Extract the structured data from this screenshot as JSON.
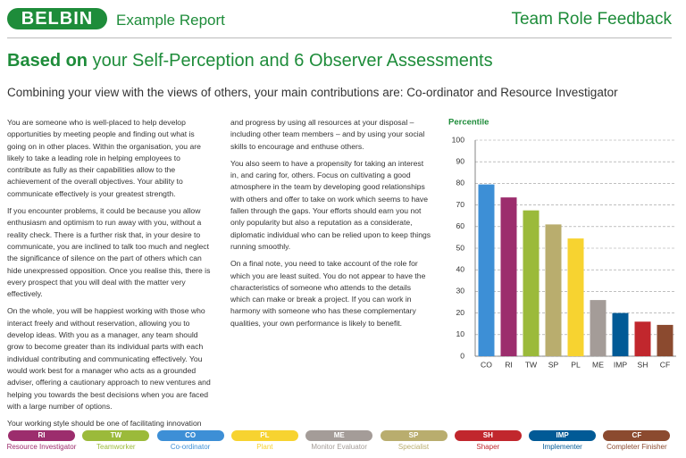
{
  "header": {
    "logo": "BELBIN",
    "report": "Example Report",
    "section": "Team Role Feedback"
  },
  "heading": {
    "bold": "Based on",
    "rest": " your Self-Perception and 6 Observer Assessments"
  },
  "subtitle": "Combining your view with the views of others, your main contributions are: Co-ordinator and Resource Investigator",
  "columns": [
    [
      "You are someone who is well-placed to help develop opportunities by meeting people and finding out what is going on in other places. Within the organisation, you are likely to take a leading role in helping employees to contribute as fully as their capabilities allow to the achievement of the overall objectives. Your ability to communicate effectively is your greatest strength.",
      "If you encounter problems, it could be because you allow enthusiasm and optimism to run away with you, without a reality check. There is a further risk that, in your desire to communicate, you are inclined to talk too much and neglect the significance of silence on the part of others which can hide unexpressed opposition. Once you realise this, there is every prospect that you will deal with the matter very effectively.",
      "On the whole, you will be happiest working with those who interact freely and without reservation, allowing you to develop ideas. With you as a manager, any team should grow to become greater than its individual parts with each individual contributing and communicating effectively. You would work best for a manager who acts as a grounded adviser, offering a cautionary approach to new ventures and helping you towards the best decisions when you are faced with a large number of options.",
      "Your working style should be one of facilitating innovation"
    ],
    [
      "and progress by using all resources at your disposal – including other team members – and by using your social skills to encourage and enthuse others.",
      "You also seem to have a propensity for taking an interest in, and caring for, others. Focus on cultivating a good atmosphere in the team by developing good relationships with others and offer to take on work which seems to have fallen through the gaps. Your efforts should earn you not only popularity but also a reputation as a considerate, diplomatic individual who can be relied upon to keep things running smoothly.",
      "On a final note, you need to take account of the role for which you are least suited. You do not appear to have the characteristics of someone who attends to the details which can make or break a project. If you can work in harmony with someone who has these complementary qualities, your own performance is likely to benefit."
    ]
  ],
  "chart_data": {
    "type": "bar",
    "title": "Percentile",
    "categories": [
      "CO",
      "RI",
      "TW",
      "SP",
      "PL",
      "ME",
      "IMP",
      "SH",
      "CF"
    ],
    "values": [
      79.5,
      73.5,
      67.5,
      61,
      54.5,
      26,
      20,
      16,
      14.5
    ],
    "colors": [
      "#3d8fd6",
      "#9c2d6d",
      "#9bba3a",
      "#b9ad6e",
      "#f7d330",
      "#a49c98",
      "#015a96",
      "#c1272d",
      "#8b4a2f"
    ],
    "ylim": [
      0,
      100
    ],
    "yticks": [
      0,
      10,
      20,
      30,
      40,
      50,
      60,
      70,
      80,
      90,
      100
    ],
    "grid": true
  },
  "roles": [
    {
      "code": "RI",
      "name": "Resource Investigator",
      "color": "#9c2d6d"
    },
    {
      "code": "TW",
      "name": "Teamworker",
      "color": "#9bba3a"
    },
    {
      "code": "CO",
      "name": "Co-ordinator",
      "color": "#3d8fd6"
    },
    {
      "code": "PL",
      "name": "Plant",
      "color": "#f7d330"
    },
    {
      "code": "ME",
      "name": "Monitor Evaluator",
      "color": "#a49c98"
    },
    {
      "code": "SP",
      "name": "Specialist",
      "color": "#b9ad6e"
    },
    {
      "code": "SH",
      "name": "Shaper",
      "color": "#c1272d"
    },
    {
      "code": "IMP",
      "name": "Implementer",
      "color": "#015a96"
    },
    {
      "code": "CF",
      "name": "Completer Finisher",
      "color": "#8b4a2f"
    }
  ]
}
